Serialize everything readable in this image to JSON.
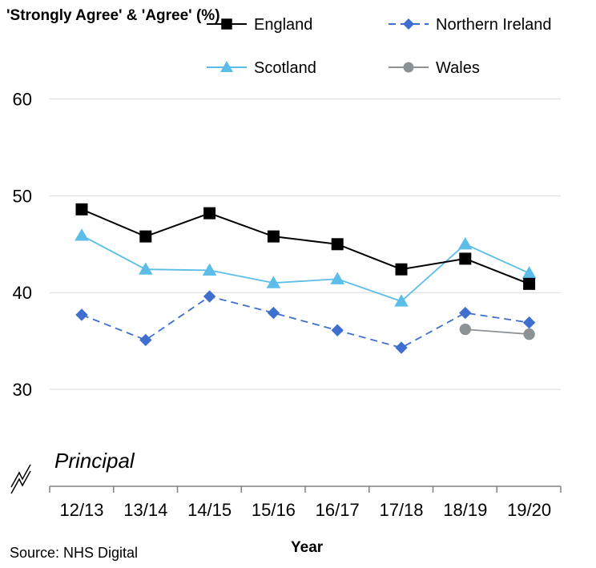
{
  "chart_data": {
    "type": "line",
    "ylabel": "'Strongly Agree' & 'Agree' (%)",
    "xlabel": "Year",
    "annotation": "Principal",
    "source": "Source: NHS Digital",
    "categories": [
      "12/13",
      "13/14",
      "14/15",
      "15/16",
      "16/17",
      "17/18",
      "18/19",
      "19/20"
    ],
    "yticks": [
      30,
      40,
      50,
      60
    ],
    "ylim": [
      20,
      60
    ],
    "axis_break": true,
    "grid": true,
    "legend_position": "top",
    "series": [
      {
        "name": "England",
        "color": "#000000",
        "marker": "square",
        "dash": "solid",
        "values": [
          48.6,
          45.8,
          48.2,
          45.8,
          45.0,
          42.4,
          43.5,
          40.9
        ]
      },
      {
        "name": "Northern Ireland",
        "color": "#3f6fce",
        "marker": "diamond",
        "dash": "dashed",
        "values": [
          37.7,
          35.1,
          39.6,
          37.9,
          36.1,
          34.3,
          37.9,
          36.9
        ]
      },
      {
        "name": "Scotland",
        "color": "#5bbde8",
        "marker": "triangle",
        "dash": "solid",
        "values": [
          45.9,
          42.4,
          42.3,
          41.0,
          41.4,
          39.1,
          45.0,
          42.0
        ]
      },
      {
        "name": "Wales",
        "color": "#8c9196",
        "marker": "circle",
        "dash": "solid",
        "values": [
          null,
          null,
          null,
          null,
          null,
          null,
          36.2,
          35.7
        ]
      }
    ]
  }
}
